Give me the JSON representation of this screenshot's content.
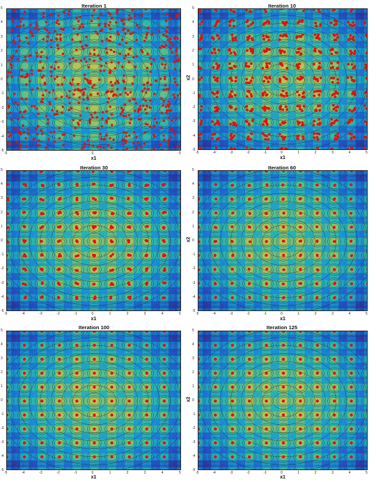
{
  "figure": {
    "colormap": [
      "#2b2f8f",
      "#1f57c4",
      "#1a8fd6",
      "#2cb6b0",
      "#8ac46a",
      "#d8c44a"
    ],
    "contour_color": "#1a1a1a",
    "marker_color": "#e01010"
  },
  "chart_data": [
    {
      "type": "scatter",
      "title": "Iteration 1",
      "xlabel": "x1",
      "ylabel": "",
      "xlim": [
        -5,
        5
      ],
      "ylim": [
        -5,
        5
      ],
      "xticks": [
        -5,
        0,
        5
      ],
      "yticks": [
        -5,
        -4,
        -3,
        -2,
        -1,
        0,
        1,
        2,
        3,
        4,
        5
      ],
      "points": {
        "distribution": "uniform",
        "count": 600,
        "spread": 5.0
      },
      "background": "filled-contour"
    },
    {
      "type": "scatter",
      "title": "Iteration 10",
      "xlabel": "x1",
      "ylabel": "x2",
      "xlim": [
        -5,
        5
      ],
      "ylim": [
        -5,
        5
      ],
      "xticks": [
        -5,
        -4,
        -3,
        -2,
        -1,
        0,
        1,
        2,
        3,
        4,
        5
      ],
      "yticks": [
        -5,
        -4,
        -3,
        -2,
        -1,
        0,
        1,
        2,
        3,
        4,
        5
      ],
      "points": {
        "distribution": "clustered",
        "per_cluster": 6,
        "spread": 0.22
      },
      "background": "filled-contour"
    },
    {
      "type": "scatter",
      "title": "Iteration 30",
      "xlabel": "x1",
      "ylabel": "",
      "xlim": [
        -5,
        5
      ],
      "ylim": [
        -5,
        5
      ],
      "xticks": [
        -5,
        -4,
        -3,
        -2,
        -1,
        0,
        1,
        2,
        3,
        4,
        5
      ],
      "yticks": [
        -5,
        -4,
        -3,
        -2,
        -1,
        0,
        1,
        2,
        3,
        4,
        5
      ],
      "points": {
        "distribution": "clustered",
        "per_cluster": 3,
        "spread": 0.08
      },
      "background": "filled-contour"
    },
    {
      "type": "scatter",
      "title": "Iteration 60",
      "xlabel": "x1",
      "ylabel": "x2",
      "xlim": [
        -5,
        5
      ],
      "ylim": [
        -5,
        5
      ],
      "xticks": [
        -5,
        -4,
        -3,
        -2,
        -1,
        0,
        1,
        2,
        3,
        4,
        5
      ],
      "yticks": [
        -5,
        -4,
        -3,
        -2,
        -1,
        0,
        1,
        2,
        3,
        4,
        5
      ],
      "points": {
        "distribution": "clustered",
        "per_cluster": 2,
        "spread": 0.04
      },
      "background": "filled-contour"
    },
    {
      "type": "scatter",
      "title": "Iteration 100",
      "xlabel": "x1",
      "ylabel": "",
      "xlim": [
        -5,
        5
      ],
      "ylim": [
        -5,
        5
      ],
      "xticks": [
        -5,
        -4,
        -3,
        -2,
        -1,
        0,
        1,
        2,
        3,
        4,
        5
      ],
      "yticks": [
        -5,
        -4,
        -3,
        -2,
        -1,
        0,
        1,
        2,
        3,
        4,
        5
      ],
      "points": {
        "distribution": "clustered",
        "per_cluster": 1,
        "spread": 0.0
      },
      "background": "filled-contour"
    },
    {
      "type": "scatter",
      "title": "Iteration 125",
      "xlabel": "x1",
      "ylabel": "x2",
      "xlim": [
        -5,
        5
      ],
      "ylim": [
        -5,
        5
      ],
      "xticks": [
        -5,
        -4,
        -3,
        -2,
        -1,
        0,
        1,
        2,
        3,
        4,
        5
      ],
      "yticks": [
        -5,
        -4,
        -3,
        -2,
        -1,
        0,
        1,
        2,
        3,
        4,
        5
      ],
      "points": {
        "distribution": "clustered",
        "per_cluster": 1,
        "spread": 0.0
      },
      "background": "filled-contour"
    }
  ]
}
